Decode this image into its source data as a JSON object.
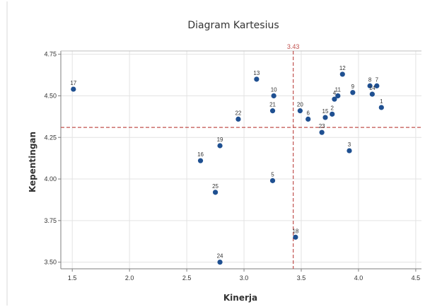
{
  "chart_data": {
    "type": "scatter",
    "title": "Diagram Kartesius",
    "xlabel": "Kinerja",
    "ylabel": "Kepentingan",
    "xlim": [
      1.4,
      4.55
    ],
    "ylim": [
      3.46,
      4.77
    ],
    "x_ticks": [
      "1.5",
      "2.0",
      "2.5",
      "3.0",
      "3.5",
      "4.0",
      "4.5"
    ],
    "y_ticks": [
      "3.50",
      "3.75",
      "4.00",
      "4.25",
      "4.50",
      "4.75"
    ],
    "x_tick_values": [
      1.5,
      2.0,
      2.5,
      3.0,
      3.5,
      4.0,
      4.5
    ],
    "y_tick_values": [
      3.5,
      3.75,
      4.0,
      4.25,
      4.5,
      4.75
    ],
    "grid": true,
    "reference_lines": {
      "x": 3.43,
      "x_label": "3.43",
      "y": 4.31,
      "color": "#c0504d"
    },
    "marker_color": "#1f5091",
    "points": [
      {
        "label": "1",
        "x": 4.2,
        "y": 4.43
      },
      {
        "label": "2",
        "x": 3.77,
        "y": 4.39
      },
      {
        "label": "3",
        "x": 3.92,
        "y": 4.17
      },
      {
        "label": "4",
        "x": 3.79,
        "y": 4.48
      },
      {
        "label": "5",
        "x": 3.25,
        "y": 3.99
      },
      {
        "label": "6",
        "x": 3.56,
        "y": 4.36
      },
      {
        "label": "7",
        "x": 4.16,
        "y": 4.56
      },
      {
        "label": "8",
        "x": 4.1,
        "y": 4.56
      },
      {
        "label": "9",
        "x": 3.95,
        "y": 4.52
      },
      {
        "label": "10",
        "x": 3.26,
        "y": 4.5
      },
      {
        "label": "11",
        "x": 3.82,
        "y": 4.5
      },
      {
        "label": "12",
        "x": 3.86,
        "y": 4.63
      },
      {
        "label": "13",
        "x": 3.11,
        "y": 4.6
      },
      {
        "label": "14",
        "x": 4.12,
        "y": 4.51
      },
      {
        "label": "15",
        "x": 3.71,
        "y": 4.37
      },
      {
        "label": "16",
        "x": 2.62,
        "y": 4.11
      },
      {
        "label": "17",
        "x": 1.51,
        "y": 4.54
      },
      {
        "label": "18",
        "x": 3.45,
        "y": 3.65
      },
      {
        "label": "19",
        "x": 2.79,
        "y": 4.2
      },
      {
        "label": "20",
        "x": 3.49,
        "y": 4.41
      },
      {
        "label": "21",
        "x": 3.25,
        "y": 4.41
      },
      {
        "label": "22",
        "x": 2.95,
        "y": 4.36
      },
      {
        "label": "23",
        "x": 3.68,
        "y": 4.28
      },
      {
        "label": "24",
        "x": 2.79,
        "y": 3.5
      },
      {
        "label": "25",
        "x": 2.75,
        "y": 3.92
      }
    ]
  }
}
